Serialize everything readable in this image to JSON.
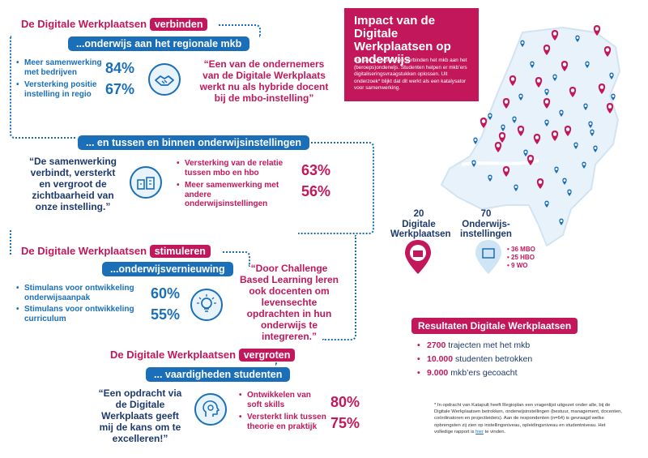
{
  "section1": {
    "title_pre": "De Digitale Werkplaatsen",
    "title_tag": "verbinden",
    "sub": "...onderwijs aan het regionale mkb",
    "bullets": [
      {
        "label": "Meer samenwerking met bedrijven",
        "pct": "84%"
      },
      {
        "label": "Versterking positie instelling in regio",
        "pct": "67%"
      }
    ],
    "icon": "handshake-icon",
    "quote": "“Een van de ondernemers van de Digitale Werkplaats werkt nu als hybride docent bij de mbo-instelling”"
  },
  "section2": {
    "sub": "... en tussen en binnen onderwijsinstellingen",
    "quote": "“De samenwerking verbindt, versterkt en vergroot de zichtbaarheid van onze instelling.”",
    "icon": "school-buildings-icon",
    "bullets": [
      {
        "label": "Versterking van de relatie tussen mbo en hbo",
        "pct": "63%"
      },
      {
        "label": "Meer samenwerking met andere onderwijsinstellingen",
        "pct": "56%"
      }
    ]
  },
  "section3": {
    "title_pre": "De Digitale Werkplaatsen",
    "title_tag": "stimuleren",
    "sub": "...onderwijsvernieuwing",
    "bullets": [
      {
        "label": "Stimulans voor ontwikkeling onderwijsaanpak",
        "pct": "60%"
      },
      {
        "label": "Stimulans voor ontwikkeling curriculum",
        "pct": "55%"
      }
    ],
    "icon": "lightbulb-icon",
    "quote": "“Door Challenge Based Learning leren ook docenten om levensechte opdrachten in hun onderwijs te integreren.”"
  },
  "section4": {
    "title_pre": "De Digitale Werkplaatsen",
    "title_tag": "vergroten",
    "sub": "... vaardigheden studenten",
    "quote": "“Een opdracht via de Digitale Werkplaats geeft mij de kans om te excelleren!”",
    "icon": "head-gear-icon",
    "bullets": [
      {
        "label": "Ontwikkelen van soft skills",
        "pct": "80%"
      },
      {
        "label": "Versterkt link tussen theorie en praktijk",
        "pct": "75%"
      }
    ]
  },
  "impact": {
    "title": "Impact van de Digitale Werkplaatsen op onderwijs",
    "body": "Digitale Werkplaatsen verbinden het mkb aan het (beroeps)onderwijs. Studenten helpen er mkb’ers digitaliseringsvraagstukken oplossen. Uit onderzoek* blijkt dat dit werkt als een katalysator voor samenwerking."
  },
  "stats": {
    "werkplaatsen": {
      "num": "20",
      "label": "Digitale Werkplaatsen"
    },
    "instellingen": {
      "num": "70",
      "label": "Onderwijs-instellingen"
    },
    "breakdown": [
      "36 MBO",
      "25 HBO",
      "9 WO"
    ]
  },
  "results": {
    "title": "Resultaten Digitale Werkplaatsen",
    "items": [
      {
        "num": "2700",
        "text": "trajecten met het mkb"
      },
      {
        "num": "10.000",
        "text": "studenten betrokken"
      },
      {
        "num": "9.000",
        "text": "mkb’ers gecoacht"
      }
    ]
  },
  "footnote": {
    "text": "* In opdracht van Katapult heeft Regioplan een vragenlijst uitgezet onder alle, bij de Digitale Werkplaatsen betrokken, onderwijsinstellingen (bestuur, management, docenten, coördinatoren en projectleiders). Aan de respondenten (n=64) is gevraagd welke opbrengsten zij zien op instellingsniveau, opleidingsniveau en studentniveau. Het volledige rapport is",
    "link": "hier",
    "end": "te vinden."
  },
  "colors": {
    "pink": "#c2185b",
    "blue": "#1a6fb8",
    "navy": "#1d3a6e"
  }
}
